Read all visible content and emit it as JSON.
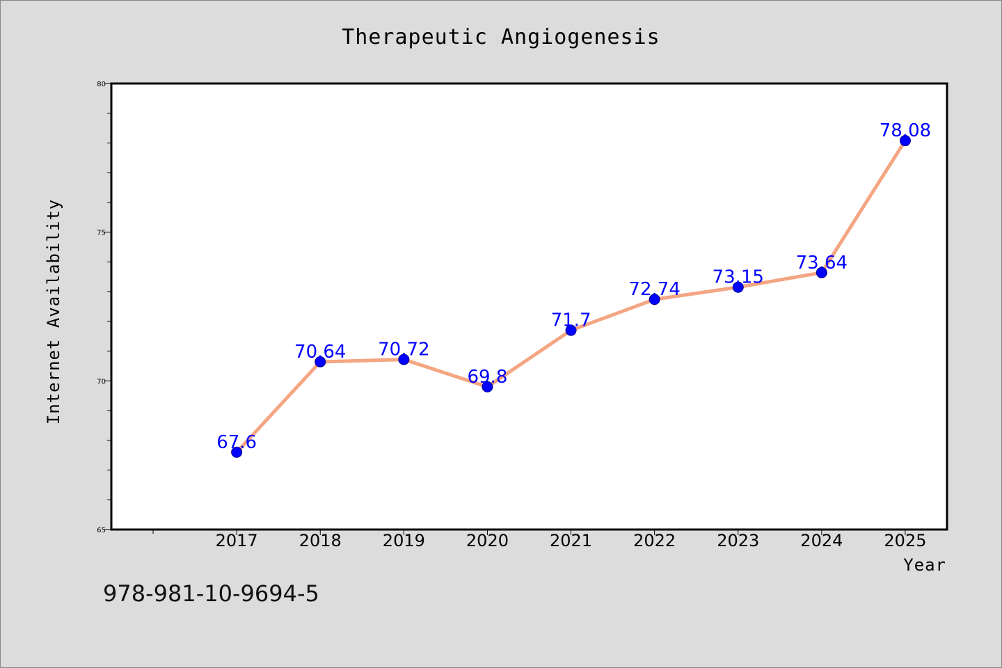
{
  "footer_text": "978-981-10-9694-5",
  "colors": {
    "background": "#dcdcdc",
    "plot_bg": "#ffffff",
    "line": "#f4a582",
    "marker": "#0000ff",
    "data_label": "#0000ff"
  },
  "chart_data": {
    "type": "line",
    "title": "Therapeutic Angiogenesis",
    "xlabel": "Year",
    "ylabel": "Internet Availability",
    "x": [
      2017,
      2018,
      2019,
      2020,
      2021,
      2022,
      2023,
      2024,
      2025
    ],
    "xlim": [
      2015.5,
      2025.5
    ],
    "ylim": [
      65,
      80
    ],
    "yticks": [
      65,
      70,
      75,
      80
    ],
    "series": [
      {
        "values": [
          67.6,
          70.64,
          70.72,
          69.8,
          71.7,
          72.74,
          73.15,
          73.64,
          78.08
        ],
        "labels": [
          "67.6",
          "70.64",
          "70.72",
          "69.8",
          "71.7",
          "72.74",
          "73.15",
          "73.64",
          "78.08"
        ]
      }
    ],
    "grid": false,
    "legend": "none"
  }
}
